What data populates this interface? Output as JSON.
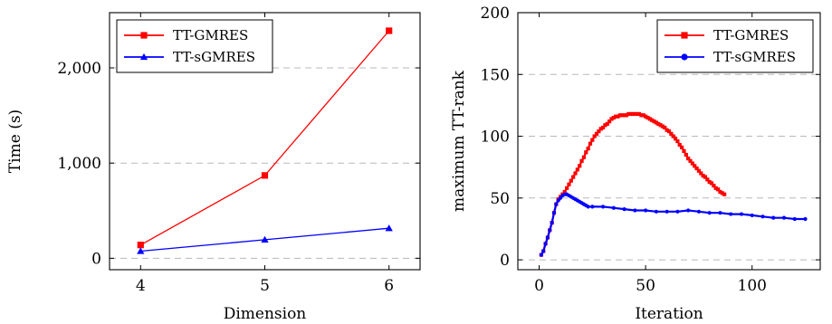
{
  "chart_data": [
    {
      "type": "line",
      "xlabel": "Dimension",
      "ylabel": "Time (s)",
      "x": [
        4,
        5,
        6
      ],
      "xticks": [
        "4",
        "5",
        "6"
      ],
      "xlim": [
        3.75,
        6.25
      ],
      "ylim": [
        -120,
        2580
      ],
      "yticks": [
        0,
        1000,
        2000
      ],
      "ytick_labels": [
        "0",
        "1,000",
        "2,000"
      ],
      "grid": "horizontal dashed",
      "legend_position": "top-left",
      "series": [
        {
          "name": "TT-GMRES",
          "color": "#ff0000",
          "marker": "square",
          "values": [
            140,
            870,
            2390
          ]
        },
        {
          "name": "TT-sGMRES",
          "color": "#0000ff",
          "marker": "triangle",
          "values": [
            75,
            195,
            315
          ]
        }
      ]
    },
    {
      "type": "line",
      "xlabel": "Iteration",
      "ylabel": "maximum TT-rank",
      "xlim": [
        -10,
        132
      ],
      "ylim": [
        -8,
        200
      ],
      "xticks": [
        0,
        50,
        100
      ],
      "xtick_labels": [
        "0",
        "50",
        "100"
      ],
      "yticks": [
        0,
        50,
        100,
        150,
        200
      ],
      "ytick_labels": [
        "0",
        "50",
        "100",
        "150",
        "200"
      ],
      "grid": "horizontal dashed",
      "legend_position": "top-right",
      "series": [
        {
          "name": "TT-GMRES",
          "color": "#ff0000",
          "marker": "square",
          "points": [
            [
              1,
              4
            ],
            [
              2,
              7
            ],
            [
              3,
              13
            ],
            [
              4,
              18
            ],
            [
              5,
              24
            ],
            [
              6,
              30
            ],
            [
              7,
              38
            ],
            [
              8,
              45
            ],
            [
              9,
              49
            ],
            [
              10,
              51
            ],
            [
              11,
              53
            ],
            [
              12,
              55
            ],
            [
              13,
              58
            ],
            [
              14,
              61
            ],
            [
              15,
              64
            ],
            [
              16,
              67
            ],
            [
              17,
              70
            ],
            [
              18,
              73
            ],
            [
              19,
              76
            ],
            [
              20,
              80
            ],
            [
              21,
              83
            ],
            [
              22,
              87
            ],
            [
              23,
              90
            ],
            [
              24,
              94
            ],
            [
              25,
              97
            ],
            [
              26,
              100
            ],
            [
              27,
              102
            ],
            [
              28,
              104
            ],
            [
              29,
              106
            ],
            [
              30,
              107
            ],
            [
              31,
              109
            ],
            [
              32,
              110
            ],
            [
              33,
              112
            ],
            [
              34,
              114
            ],
            [
              35,
              115
            ],
            [
              36,
              116
            ],
            [
              37,
              116
            ],
            [
              38,
              117
            ],
            [
              39,
              117
            ],
            [
              40,
              117
            ],
            [
              41,
              117
            ],
            [
              42,
              118
            ],
            [
              43,
              118
            ],
            [
              44,
              118
            ],
            [
              45,
              118
            ],
            [
              46,
              118
            ],
            [
              47,
              118
            ],
            [
              48,
              117
            ],
            [
              49,
              117
            ],
            [
              50,
              116
            ],
            [
              51,
              115
            ],
            [
              52,
              114
            ],
            [
              53,
              113
            ],
            [
              54,
              112
            ],
            [
              55,
              111
            ],
            [
              56,
              110
            ],
            [
              57,
              109
            ],
            [
              58,
              108
            ],
            [
              59,
              107
            ],
            [
              60,
              105
            ],
            [
              61,
              104
            ],
            [
              62,
              102
            ],
            [
              63,
              100
            ],
            [
              64,
              98
            ],
            [
              65,
              96
            ],
            [
              66,
              93
            ],
            [
              67,
              91
            ],
            [
              68,
              88
            ],
            [
              69,
              85
            ],
            [
              70,
              82
            ],
            [
              71,
              80
            ],
            [
              72,
              78
            ],
            [
              73,
              76
            ],
            [
              74,
              74
            ],
            [
              75,
              72
            ],
            [
              76,
              70
            ],
            [
              77,
              68
            ],
            [
              78,
              67
            ],
            [
              79,
              65
            ],
            [
              80,
              63
            ],
            [
              81,
              62
            ],
            [
              82,
              60
            ],
            [
              83,
              58
            ],
            [
              84,
              57
            ],
            [
              85,
              55
            ],
            [
              86,
              54
            ],
            [
              87,
              53
            ]
          ]
        },
        {
          "name": "TT-sGMRES",
          "color": "#0000ff",
          "marker": "circle",
          "points": [
            [
              1,
              4
            ],
            [
              2,
              7
            ],
            [
              3,
              13
            ],
            [
              4,
              18
            ],
            [
              5,
              24
            ],
            [
              6,
              30
            ],
            [
              7,
              38
            ],
            [
              8,
              45
            ],
            [
              9,
              48
            ],
            [
              10,
              50
            ],
            [
              11,
              52
            ],
            [
              12,
              53
            ],
            [
              13,
              53
            ],
            [
              14,
              52
            ],
            [
              15,
              51
            ],
            [
              16,
              50
            ],
            [
              17,
              49
            ],
            [
              18,
              48
            ],
            [
              19,
              47
            ],
            [
              20,
              46
            ],
            [
              21,
              45
            ],
            [
              22,
              44
            ],
            [
              23,
              43
            ],
            [
              25,
              43
            ],
            [
              30,
              43
            ],
            [
              35,
              42
            ],
            [
              40,
              41
            ],
            [
              45,
              40
            ],
            [
              50,
              40
            ],
            [
              55,
              39
            ],
            [
              60,
              39
            ],
            [
              65,
              39
            ],
            [
              70,
              40
            ],
            [
              75,
              39
            ],
            [
              80,
              38
            ],
            [
              85,
              38
            ],
            [
              90,
              37
            ],
            [
              95,
              37
            ],
            [
              100,
              36
            ],
            [
              105,
              35
            ],
            [
              110,
              34
            ],
            [
              115,
              34
            ],
            [
              120,
              33
            ],
            [
              125,
              33
            ]
          ]
        }
      ]
    }
  ]
}
